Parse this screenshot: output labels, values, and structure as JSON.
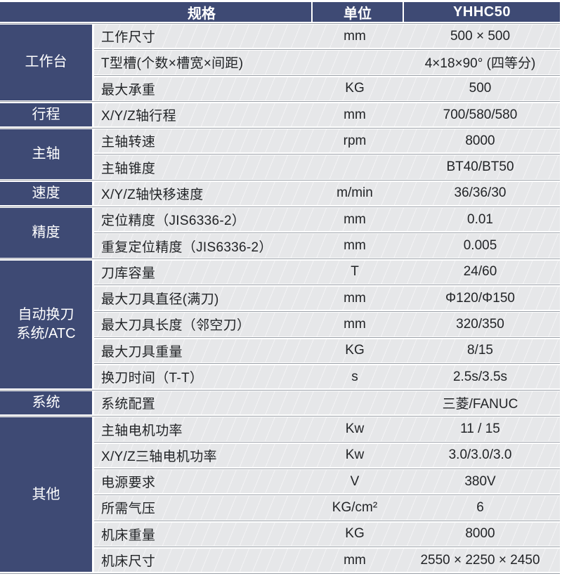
{
  "colors": {
    "navy": "#3E4A74",
    "row_bg": "#E9EAEC",
    "separator_line": "#9BA0A8",
    "text": "#222427",
    "header_text": "#FFFFFF"
  },
  "header": {
    "spec": "规格",
    "unit": "单位",
    "model": "YHHC50"
  },
  "groups": [
    {
      "label": "工作台",
      "rows": [
        {
          "name": "工作尺寸",
          "unit": "mm",
          "value": "500 × 500"
        },
        {
          "name": "T型槽(个数×槽宽×间距)",
          "unit": "",
          "value": "4×18×90° (四等分)"
        },
        {
          "name": "最大承重",
          "unit": "KG",
          "value": "500"
        }
      ]
    },
    {
      "label": "行程",
      "rows": [
        {
          "name": "X/Y/Z轴行程",
          "unit": "mm",
          "value": "700/580/580"
        }
      ]
    },
    {
      "label": "主轴",
      "rows": [
        {
          "name": "主轴转速",
          "unit": "rpm",
          "value": "8000"
        },
        {
          "name": "主轴锥度",
          "unit": "",
          "value": "BT40/BT50"
        }
      ]
    },
    {
      "label": "速度",
      "rows": [
        {
          "name": "X/Y/Z轴快移速度",
          "unit": "m/min",
          "value": "36/36/30"
        }
      ]
    },
    {
      "label": "精度",
      "rows": [
        {
          "name": "定位精度（JIS6336-2）",
          "unit": "mm",
          "value": "0.01"
        },
        {
          "name": "重复定位精度（JIS6336-2）",
          "unit": "mm",
          "value": "0.005"
        }
      ]
    },
    {
      "label": "自动换刀\n系统/ATC",
      "rows": [
        {
          "name": "刀库容量",
          "unit": "T",
          "value": "24/60"
        },
        {
          "name": "最大刀具直径(满刀)",
          "unit": "mm",
          "value": "Φ120/Φ150"
        },
        {
          "name": "最大刀具长度（邻空刀）",
          "unit": "mm",
          "value": "320/350"
        },
        {
          "name": "最大刀具重量",
          "unit": "KG",
          "value": "8/15"
        },
        {
          "name": "换刀时间（T-T）",
          "unit": "s",
          "value": "2.5s/3.5s"
        }
      ]
    },
    {
      "label": "系统",
      "rows": [
        {
          "name": "系统配置",
          "unit": "",
          "value": "三菱/FANUC"
        }
      ]
    },
    {
      "label": "其他",
      "rows": [
        {
          "name": "主轴电机功率",
          "unit": "Kw",
          "value": "11 / 15"
        },
        {
          "name": "X/Y/Z三轴电机功率",
          "unit": "Kw",
          "value": "3.0/3.0/3.0"
        },
        {
          "name": "电源要求",
          "unit": "V",
          "value": "380V"
        },
        {
          "name": "所需气压",
          "unit": "KG/cm²",
          "value": "6"
        },
        {
          "name": "机床重量",
          "unit": "KG",
          "value": "8000"
        },
        {
          "name": "机床尺寸",
          "unit": "mm",
          "value": "2550 × 2250 × 2450"
        }
      ]
    }
  ]
}
